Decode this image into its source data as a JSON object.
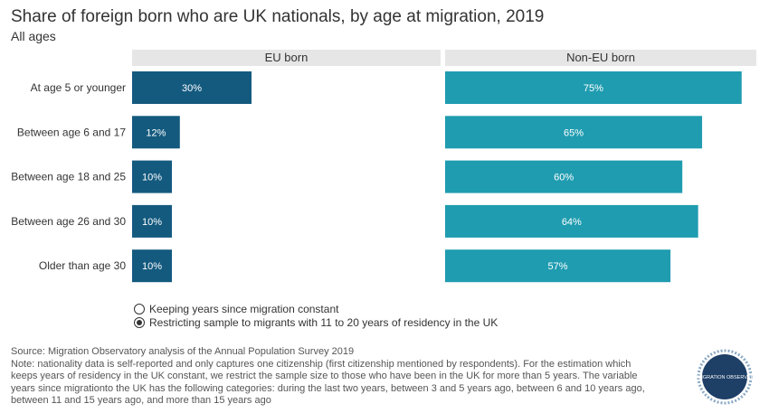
{
  "title": "Share of foreign born who are UK nationals, by age at migration, 2019",
  "subtitle": "All ages",
  "panels": [
    {
      "label": "EU born"
    },
    {
      "label": "Non-EU born"
    }
  ],
  "legend": {
    "options": [
      {
        "label": "Keeping years since migration constant",
        "selected": false
      },
      {
        "label": "Restricting sample to migrants with 11 to 20 years of residency in the UK",
        "selected": true
      }
    ]
  },
  "notes": {
    "source": "Source: Migration Observatory analysis of the Annual Population Survey 2019",
    "note_line1": "Note: nationality data is self-reported and only captures one citizenship (first citizenship mentioned by respondents). For the estimation which",
    "note_line2": "keeps years of residency in the UK constant, we restrict the sample size to those who have been in the UK for more than 5 years. The variable",
    "note_line3": "years since migrationto the UK has the following categories: during the last two years, between 3 and 5 years ago, between 6 and 10 years ago,",
    "note_line4": "between 11 and 15 years ago, and more than 15 years ago"
  },
  "logo": {
    "text": "THE MIGRATION OBSERVATORY",
    "icon": "migration-observatory-logo"
  },
  "colors": {
    "eu": "#145a7f",
    "non_eu": "#1f9cb0",
    "header_bg": "#e6e6e6"
  },
  "chart_data": {
    "type": "bar",
    "orientation": "horizontal",
    "categories": [
      "At age 5 or younger",
      "Between age 6 and 17",
      "Between age 18 and 25",
      "Between age 26 and 30",
      "Older than age 30"
    ],
    "series": [
      {
        "name": "EU born",
        "values": [
          30,
          12,
          10,
          10,
          10
        ]
      },
      {
        "name": "Non-EU born",
        "values": [
          75,
          65,
          60,
          64,
          57
        ]
      }
    ],
    "value_labels": [
      [
        "30%",
        "12%",
        "10%",
        "10%",
        "10%"
      ],
      [
        "75%",
        "65%",
        "60%",
        "64%",
        "57%"
      ]
    ],
    "xlim": [
      0,
      100
    ],
    "grid": false,
    "legend": "bottom"
  }
}
